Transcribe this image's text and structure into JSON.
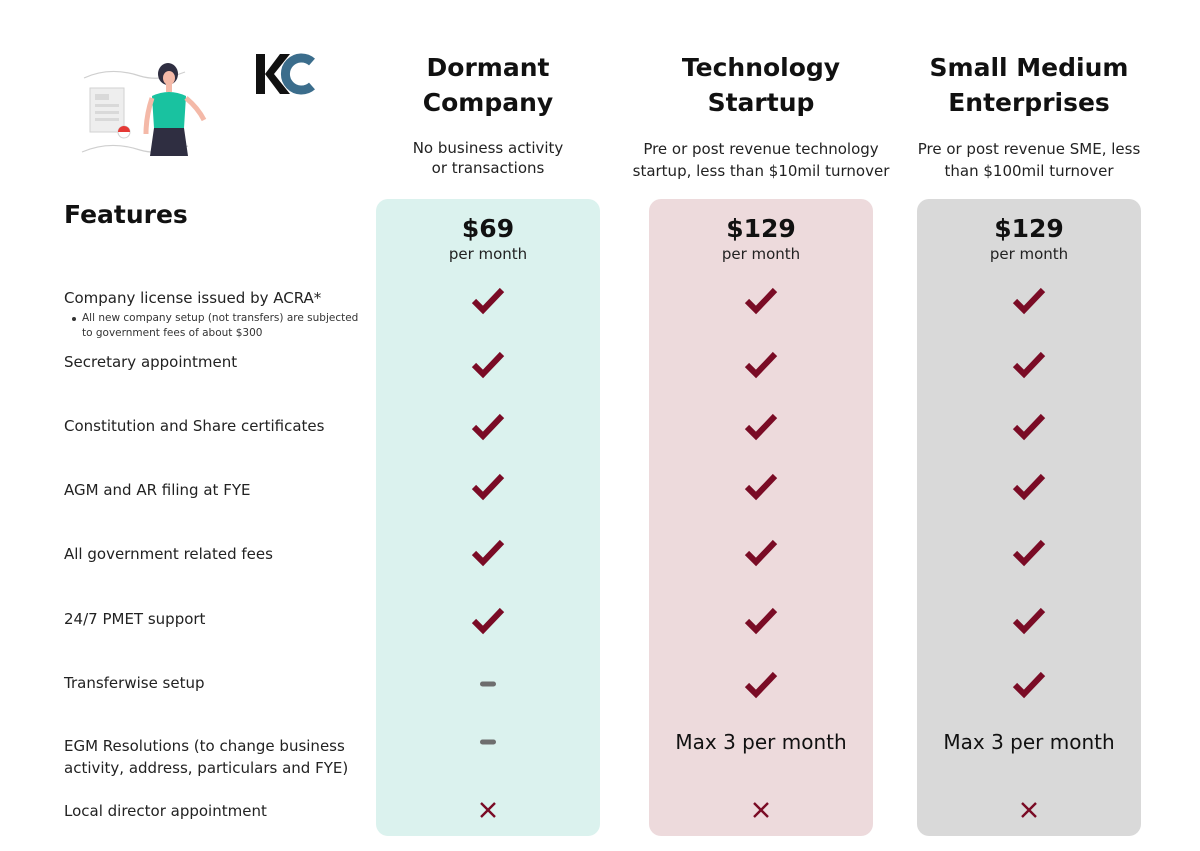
{
  "logo": {
    "text": "KC"
  },
  "colors": {
    "col_dormant": "#dbf2ee",
    "col_tech": "#eddadc",
    "col_sme": "#d9d9d9",
    "mark": "#7a0b25",
    "dash": "#6e6e6e",
    "illustration_teal": "#19c2a0",
    "logo_dark": "#111111",
    "logo_blue": "#3b6d8c"
  },
  "plans": [
    {
      "title_line1": "Dormant",
      "title_line2": "Company",
      "desc_line1": "No business activity",
      "desc_line2": "or  transactions",
      "price": "$69",
      "period": "per month"
    },
    {
      "title_line1": "Technology",
      "title_line2": "Startup",
      "desc_line1": "Pre or post revenue technology",
      "desc_line2": "startup, less than $10mil turnover",
      "price": "$129",
      "period": "per month"
    },
    {
      "title_line1": "Small Medium",
      "title_line2": "Enterprises",
      "desc_line1": "Pre or post revenue SME, less",
      "desc_line2": "than $100mil turnover",
      "price": "$129",
      "period": "per month"
    }
  ],
  "features_heading": "Features",
  "features": [
    {
      "label": "Company license issued by ACRA*",
      "note_line1": "All new company setup (not transfers) are subjected",
      "note_line2": "to government fees of about $300",
      "cells": [
        {
          "icon": "check-icon"
        },
        {
          "icon": "check-icon"
        },
        {
          "icon": "check-icon"
        }
      ]
    },
    {
      "label": "Secretary appointment",
      "cells": [
        {
          "icon": "check-icon"
        },
        {
          "icon": "check-icon"
        },
        {
          "icon": "check-icon"
        }
      ]
    },
    {
      "label": "Constitution and Share certificates",
      "cells": [
        {
          "icon": "check-icon"
        },
        {
          "icon": "check-icon"
        },
        {
          "icon": "check-icon"
        }
      ]
    },
    {
      "label": "AGM and AR filing at FYE",
      "cells": [
        {
          "icon": "check-icon"
        },
        {
          "icon": "check-icon"
        },
        {
          "icon": "check-icon"
        }
      ]
    },
    {
      "label": "All government related fees",
      "cells": [
        {
          "icon": "check-icon"
        },
        {
          "icon": "check-icon"
        },
        {
          "icon": "check-icon"
        }
      ]
    },
    {
      "label": "24/7 PMET support",
      "cells": [
        {
          "icon": "check-icon"
        },
        {
          "icon": "check-icon"
        },
        {
          "icon": "check-icon"
        }
      ]
    },
    {
      "label": "Transferwise setup",
      "cells": [
        {
          "icon": "dash-icon"
        },
        {
          "icon": "check-icon"
        },
        {
          "icon": "check-icon"
        }
      ]
    },
    {
      "label_line1": "EGM Resolutions (to change business",
      "label_line2": "activity, address, particulars and FYE)",
      "cells": [
        {
          "icon": "dash-icon"
        },
        {
          "text": "Max 3 per month"
        },
        {
          "text": "Max 3 per month"
        }
      ]
    },
    {
      "label": "Local director appointment",
      "cells": [
        {
          "icon": "cross-icon"
        },
        {
          "icon": "cross-icon"
        },
        {
          "icon": "cross-icon"
        }
      ]
    }
  ]
}
